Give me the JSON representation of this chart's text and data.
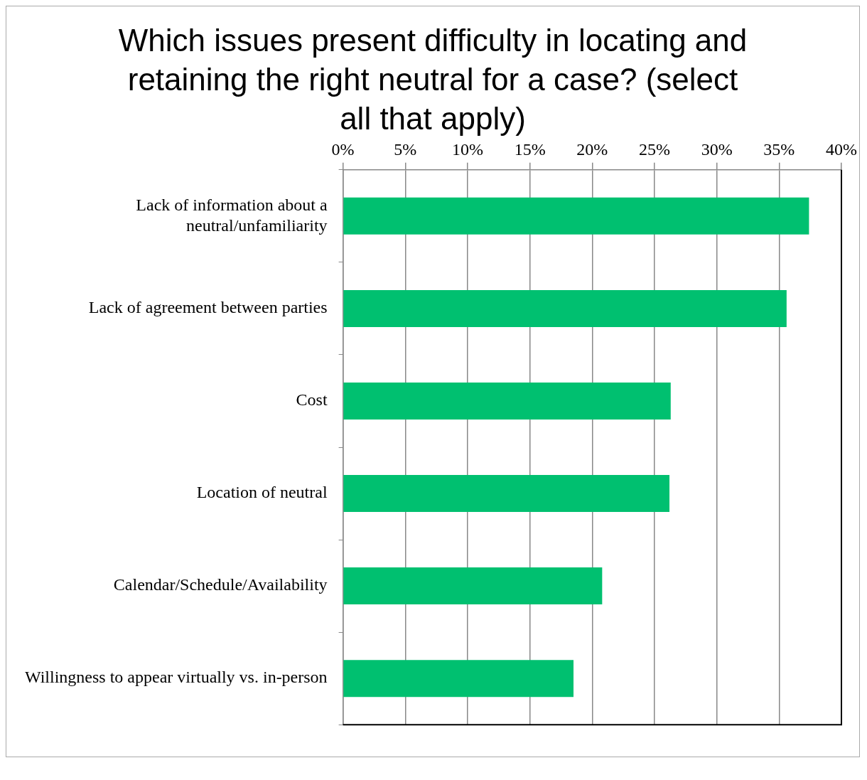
{
  "chart_data": {
    "type": "bar",
    "orientation": "horizontal",
    "title": "Which issues present difficulty in locating and retaining the right neutral for a case? (select all that apply)",
    "categories": [
      "Lack of information about a neutral/unfamiliarity",
      "Lack of agreement between parties",
      "Cost",
      "Location of neutral",
      "Calendar/Schedule/Availability",
      "Willingness to appear virtually vs. in-person"
    ],
    "values": [
      37.4,
      35.6,
      26.3,
      26.2,
      20.8,
      18.5
    ],
    "color": "#00c070",
    "xlim": [
      0,
      40
    ],
    "xticks": [
      {
        "value": 0,
        "label": "0%"
      },
      {
        "value": 5,
        "label": "5%"
      },
      {
        "value": 10,
        "label": "10%"
      },
      {
        "value": 15,
        "label": "15%"
      },
      {
        "value": 20,
        "label": "20%"
      },
      {
        "value": 25,
        "label": "25%"
      },
      {
        "value": 30,
        "label": "30%"
      },
      {
        "value": 35,
        "label": "35%"
      },
      {
        "value": 40,
        "label": "40%"
      }
    ],
    "grid": "x",
    "legend": false
  }
}
